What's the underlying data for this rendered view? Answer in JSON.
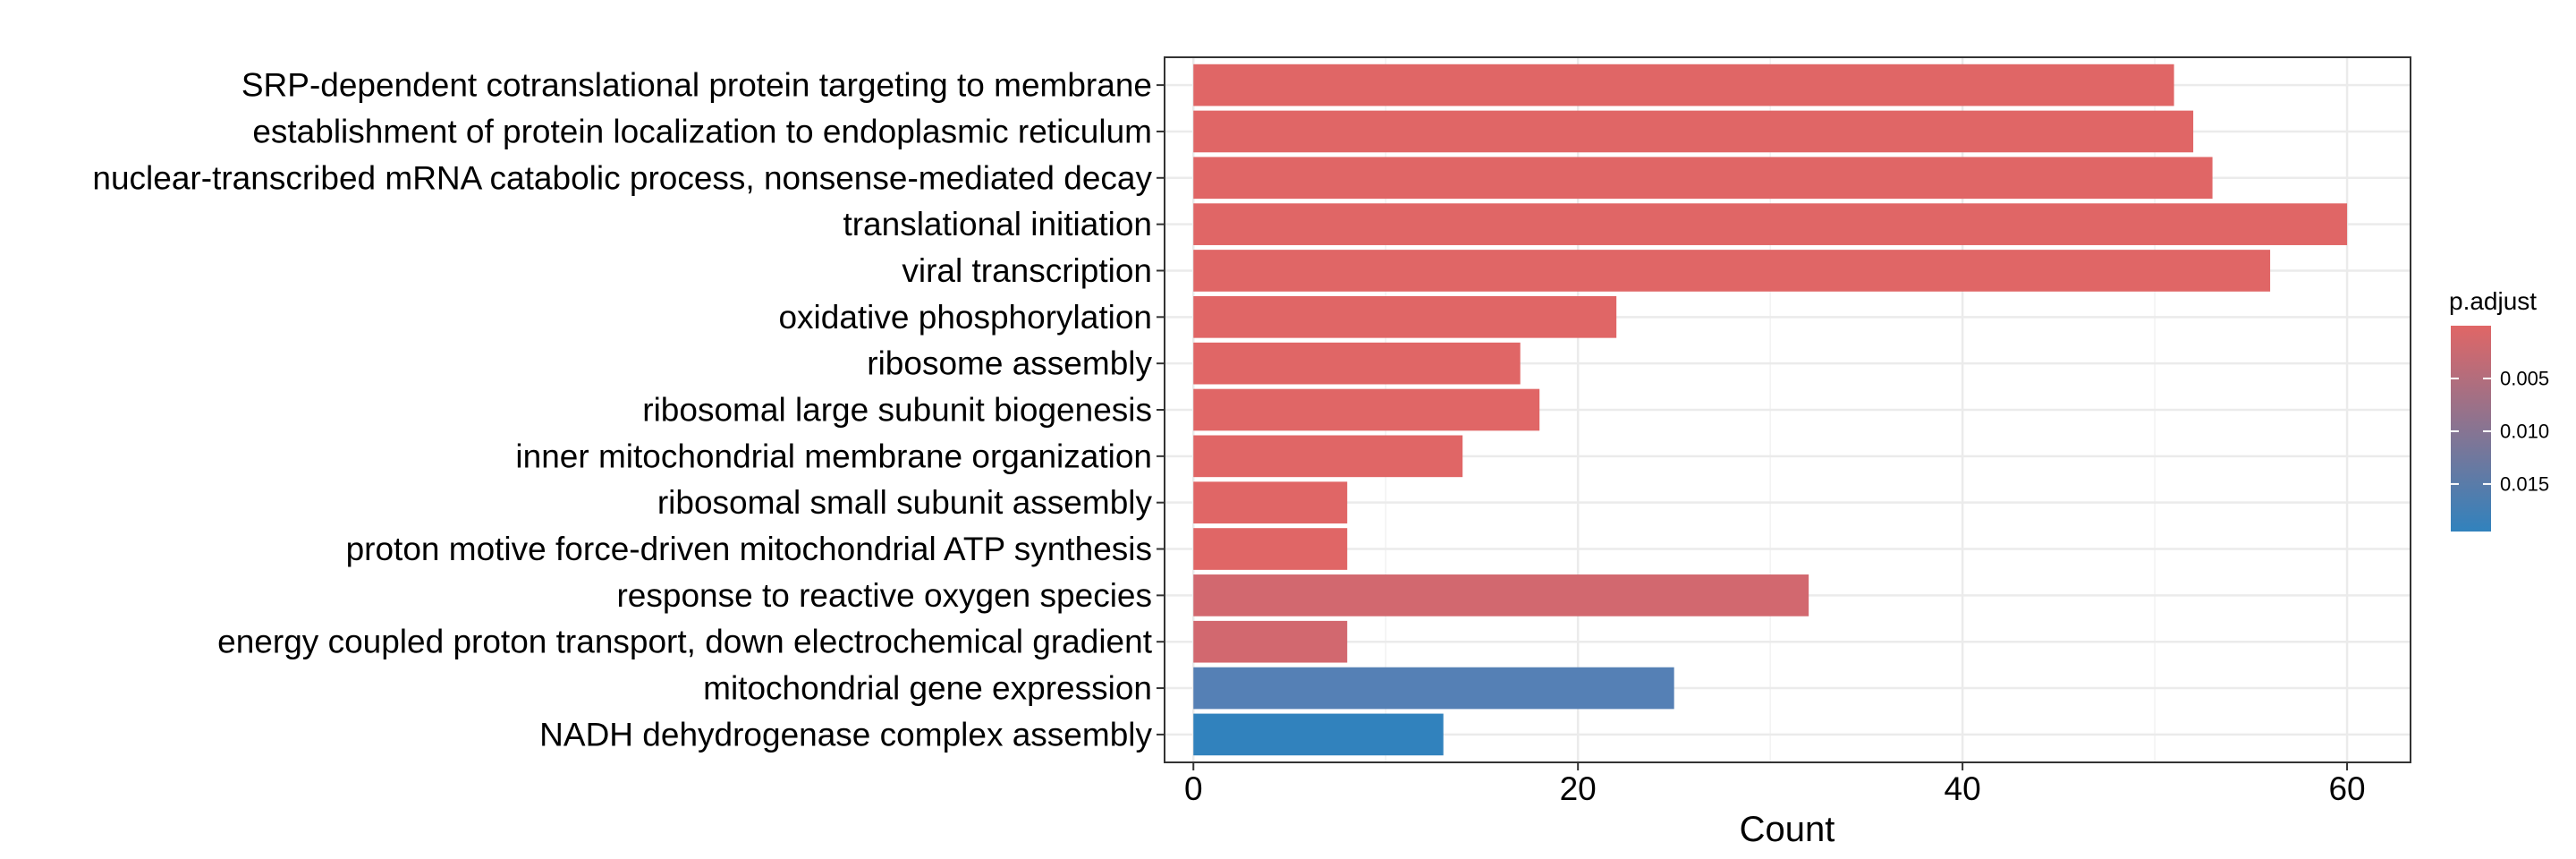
{
  "chart_data": {
    "type": "bar",
    "orientation": "horizontal",
    "title": "",
    "xlabel": "Count",
    "ylabel": "",
    "xlim": [
      -1.5,
      63.3
    ],
    "x_ticks": [
      0,
      20,
      40,
      60
    ],
    "grid": true,
    "categories": [
      "SRP-dependent cotranslational protein targeting to membrane",
      "establishment of protein localization to endoplasmic reticulum",
      "nuclear-transcribed mRNA catabolic process, nonsense-mediated decay",
      "translational initiation",
      "viral transcription",
      "oxidative phosphorylation",
      "ribosome assembly",
      "ribosomal large subunit biogenesis",
      "inner mitochondrial membrane organization",
      "ribosomal small subunit assembly",
      "proton motive force-driven mitochondrial ATP synthesis",
      "response to reactive oxygen species",
      "energy coupled proton transport, down electrochemical gradient",
      "mitochondrial gene expression",
      "NADH dehydrogenase complex assembly"
    ],
    "values": [
      51,
      52,
      53,
      60,
      56,
      22,
      17,
      18,
      14,
      8,
      8,
      32,
      8,
      25,
      13
    ],
    "bar_colors": [
      "#e06666",
      "#e06666",
      "#e06666",
      "#e06666",
      "#e06666",
      "#e06666",
      "#e06666",
      "#e06666",
      "#e06666",
      "#e06666",
      "#e06666",
      "#d2686f",
      "#d2686f",
      "#5580b5",
      "#3182bd"
    ],
    "legend": {
      "title": "p.adjust",
      "placement": "right",
      "ticks": [
        "0.005",
        "0.010",
        "0.015"
      ],
      "tick_values": [
        0.005,
        0.01,
        0.015
      ],
      "range": [
        0.0,
        0.0195
      ],
      "color_low": "#e06666",
      "color_high": "#3182bd"
    }
  }
}
